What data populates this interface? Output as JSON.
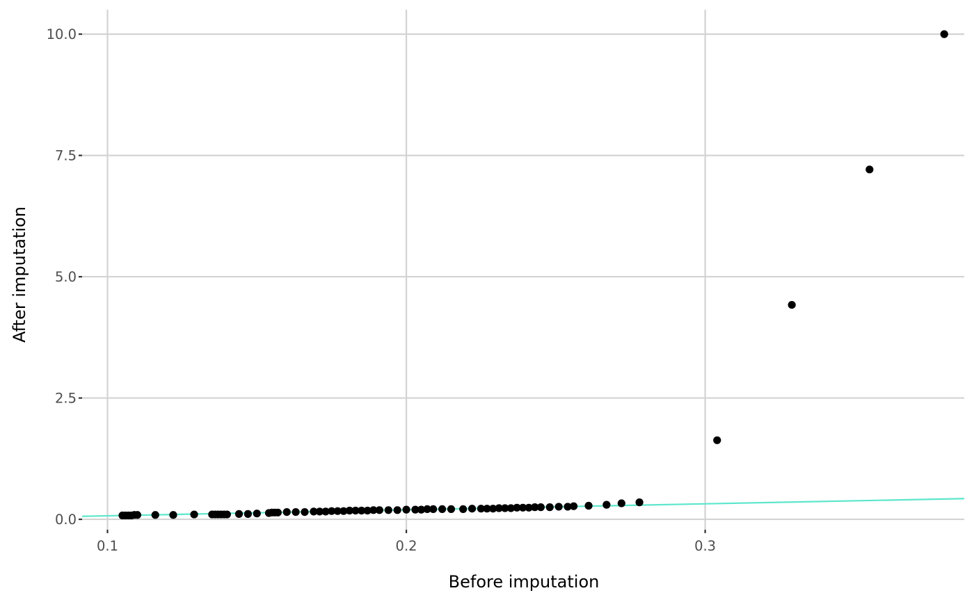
{
  "chart_data": {
    "type": "scatter",
    "xlabel": "Before imputation",
    "ylabel": "After imputation",
    "xlim": [
      0.0915,
      0.3867
    ],
    "ylim": [
      -0.214,
      10.503
    ],
    "x_ticks": [
      0.1,
      0.2,
      0.3
    ],
    "x_tick_labels": [
      "0.1",
      "0.2",
      "0.3"
    ],
    "y_ticks": [
      0.0,
      2.5,
      5.0,
      7.5,
      10.0
    ],
    "y_tick_labels": [
      "0.0",
      "2.5",
      "5.0",
      "7.5",
      "10.0"
    ],
    "grid": true,
    "point_color": "#000000",
    "line_color": "#5ce6cc",
    "reference_line": {
      "x": [
        0.0915,
        0.3867
      ],
      "y": [
        0.062,
        0.427
      ]
    },
    "series": [
      {
        "values": [
          [
            0.105,
            0.08
          ],
          [
            0.106,
            0.08
          ],
          [
            0.107,
            0.08
          ],
          [
            0.108,
            0.08
          ],
          [
            0.109,
            0.09
          ],
          [
            0.11,
            0.09
          ],
          [
            0.116,
            0.09
          ],
          [
            0.122,
            0.09
          ],
          [
            0.129,
            0.1
          ],
          [
            0.135,
            0.1
          ],
          [
            0.136,
            0.1
          ],
          [
            0.137,
            0.1
          ],
          [
            0.138,
            0.1
          ],
          [
            0.139,
            0.1
          ],
          [
            0.14,
            0.1
          ],
          [
            0.144,
            0.11
          ],
          [
            0.147,
            0.11
          ],
          [
            0.15,
            0.12
          ],
          [
            0.154,
            0.13
          ],
          [
            0.155,
            0.14
          ],
          [
            0.156,
            0.14
          ],
          [
            0.157,
            0.14
          ],
          [
            0.16,
            0.15
          ],
          [
            0.163,
            0.15
          ],
          [
            0.166,
            0.15
          ],
          [
            0.169,
            0.16
          ],
          [
            0.171,
            0.16
          ],
          [
            0.173,
            0.16
          ],
          [
            0.175,
            0.17
          ],
          [
            0.177,
            0.17
          ],
          [
            0.179,
            0.17
          ],
          [
            0.181,
            0.18
          ],
          [
            0.183,
            0.18
          ],
          [
            0.185,
            0.18
          ],
          [
            0.187,
            0.18
          ],
          [
            0.189,
            0.19
          ],
          [
            0.191,
            0.19
          ],
          [
            0.194,
            0.19
          ],
          [
            0.197,
            0.19
          ],
          [
            0.2,
            0.2
          ],
          [
            0.203,
            0.2
          ],
          [
            0.205,
            0.2
          ],
          [
            0.207,
            0.21
          ],
          [
            0.209,
            0.21
          ],
          [
            0.212,
            0.21
          ],
          [
            0.215,
            0.21
          ],
          [
            0.219,
            0.21
          ],
          [
            0.222,
            0.22
          ],
          [
            0.225,
            0.22
          ],
          [
            0.227,
            0.22
          ],
          [
            0.229,
            0.22
          ],
          [
            0.231,
            0.23
          ],
          [
            0.233,
            0.23
          ],
          [
            0.235,
            0.23
          ],
          [
            0.237,
            0.24
          ],
          [
            0.239,
            0.24
          ],
          [
            0.241,
            0.24
          ],
          [
            0.243,
            0.25
          ],
          [
            0.245,
            0.25
          ],
          [
            0.248,
            0.25
          ],
          [
            0.251,
            0.26
          ],
          [
            0.254,
            0.26
          ],
          [
            0.256,
            0.27
          ],
          [
            0.261,
            0.28
          ],
          [
            0.267,
            0.3
          ],
          [
            0.272,
            0.33
          ],
          [
            0.278,
            0.35
          ],
          [
            0.304,
            1.63
          ],
          [
            0.329,
            4.42
          ],
          [
            0.355,
            7.21
          ],
          [
            0.38,
            10.0
          ]
        ]
      }
    ]
  }
}
